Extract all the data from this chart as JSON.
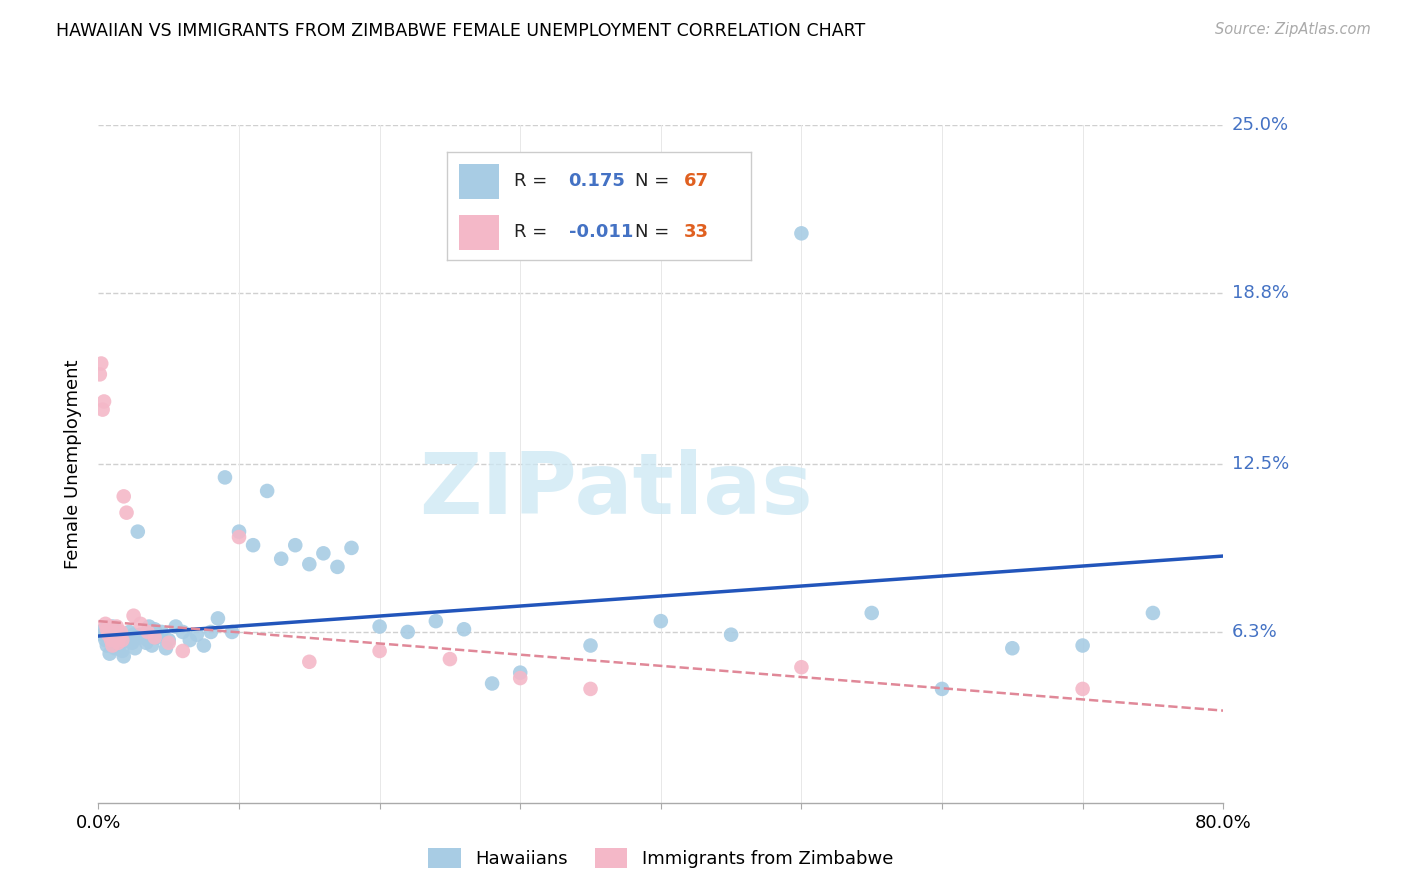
{
  "title": "HAWAIIAN VS IMMIGRANTS FROM ZIMBABWE FEMALE UNEMPLOYMENT CORRELATION CHART",
  "source": "Source: ZipAtlas.com",
  "ylabel": "Female Unemployment",
  "xlim": [
    0.0,
    0.8
  ],
  "ylim": [
    0.0,
    0.25
  ],
  "ytick_vals": [
    0.0,
    0.063,
    0.125,
    0.188,
    0.25
  ],
  "ytick_labels": [
    "",
    "6.3%",
    "12.5%",
    "18.8%",
    "25.0%"
  ],
  "xtick_vals": [
    0.0,
    0.1,
    0.2,
    0.3,
    0.4,
    0.5,
    0.6,
    0.7,
    0.8
  ],
  "xtick_labels": [
    "0.0%",
    "",
    "",
    "",
    "",
    "",
    "",
    "",
    "80.0%"
  ],
  "hawaiians_color": "#a8cce4",
  "zimbabwe_color": "#f4b8c8",
  "trend_blue_color": "#2255bb",
  "trend_pink_color": "#e08898",
  "grid_color": "#d0d0d0",
  "bg_color": "#ffffff",
  "watermark": "ZIPatlas",
  "watermark_color": "#cce8f4",
  "blue_trend_x0": 0.0,
  "blue_trend_y0": 0.0615,
  "blue_trend_x1": 0.8,
  "blue_trend_y1": 0.091,
  "pink_trend_x0": 0.0,
  "pink_trend_y0": 0.067,
  "pink_trend_x1": 0.8,
  "pink_trend_y1": 0.034,
  "hawaiians_x": [
    0.003,
    0.004,
    0.005,
    0.006,
    0.007,
    0.008,
    0.009,
    0.01,
    0.011,
    0.012,
    0.013,
    0.014,
    0.015,
    0.016,
    0.017,
    0.018,
    0.019,
    0.02,
    0.022,
    0.024,
    0.026,
    0.028,
    0.03,
    0.032,
    0.034,
    0.036,
    0.038,
    0.04,
    0.042,
    0.045,
    0.048,
    0.05,
    0.055,
    0.06,
    0.065,
    0.07,
    0.075,
    0.08,
    0.09,
    0.1,
    0.11,
    0.12,
    0.13,
    0.14,
    0.15,
    0.16,
    0.17,
    0.18,
    0.2,
    0.22,
    0.24,
    0.26,
    0.28,
    0.3,
    0.35,
    0.4,
    0.45,
    0.5,
    0.55,
    0.6,
    0.65,
    0.7,
    0.75,
    0.025,
    0.035,
    0.085,
    0.095
  ],
  "hawaiians_y": [
    0.062,
    0.064,
    0.06,
    0.058,
    0.063,
    0.055,
    0.061,
    0.065,
    0.059,
    0.057,
    0.063,
    0.06,
    0.058,
    0.062,
    0.056,
    0.054,
    0.061,
    0.06,
    0.063,
    0.059,
    0.057,
    0.1,
    0.062,
    0.061,
    0.059,
    0.065,
    0.058,
    0.064,
    0.061,
    0.063,
    0.057,
    0.06,
    0.065,
    0.063,
    0.06,
    0.062,
    0.058,
    0.063,
    0.12,
    0.1,
    0.095,
    0.115,
    0.09,
    0.095,
    0.088,
    0.092,
    0.087,
    0.094,
    0.065,
    0.063,
    0.067,
    0.064,
    0.044,
    0.048,
    0.058,
    0.067,
    0.062,
    0.21,
    0.07,
    0.042,
    0.057,
    0.058,
    0.07,
    0.062,
    0.06,
    0.068,
    0.063
  ],
  "zimbabwe_x": [
    0.001,
    0.002,
    0.003,
    0.004,
    0.005,
    0.006,
    0.007,
    0.008,
    0.009,
    0.01,
    0.011,
    0.012,
    0.013,
    0.014,
    0.015,
    0.016,
    0.017,
    0.018,
    0.02,
    0.025,
    0.03,
    0.035,
    0.04,
    0.05,
    0.06,
    0.1,
    0.15,
    0.2,
    0.25,
    0.3,
    0.35,
    0.5,
    0.7
  ],
  "zimbabwe_y": [
    0.158,
    0.162,
    0.145,
    0.148,
    0.066,
    0.064,
    0.062,
    0.065,
    0.06,
    0.058,
    0.063,
    0.061,
    0.065,
    0.059,
    0.061,
    0.063,
    0.06,
    0.113,
    0.107,
    0.069,
    0.066,
    0.063,
    0.061,
    0.059,
    0.056,
    0.098,
    0.052,
    0.056,
    0.053,
    0.046,
    0.042,
    0.05,
    0.042
  ]
}
